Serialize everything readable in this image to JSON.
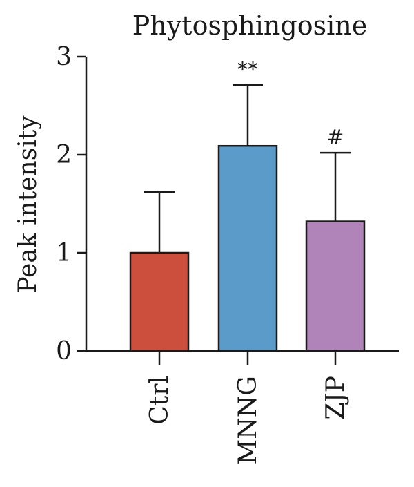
{
  "chart_data": {
    "type": "bar",
    "title": "Phytosphingosine",
    "ylabel": "Peak intensity",
    "xlabel": "",
    "ylim": [
      0,
      3
    ],
    "yticks": [
      0,
      1,
      2,
      3
    ],
    "categories": [
      "Ctrl",
      "MNNG",
      "ZJP"
    ],
    "values": [
      1.0,
      2.09,
      1.32
    ],
    "errors": [
      0.62,
      0.62,
      0.7
    ],
    "annotations": [
      "",
      "**",
      "#"
    ],
    "colors": [
      "#cc4e3c",
      "#5b9bc9",
      "#b084b8"
    ],
    "grid": false,
    "legend": "none"
  }
}
